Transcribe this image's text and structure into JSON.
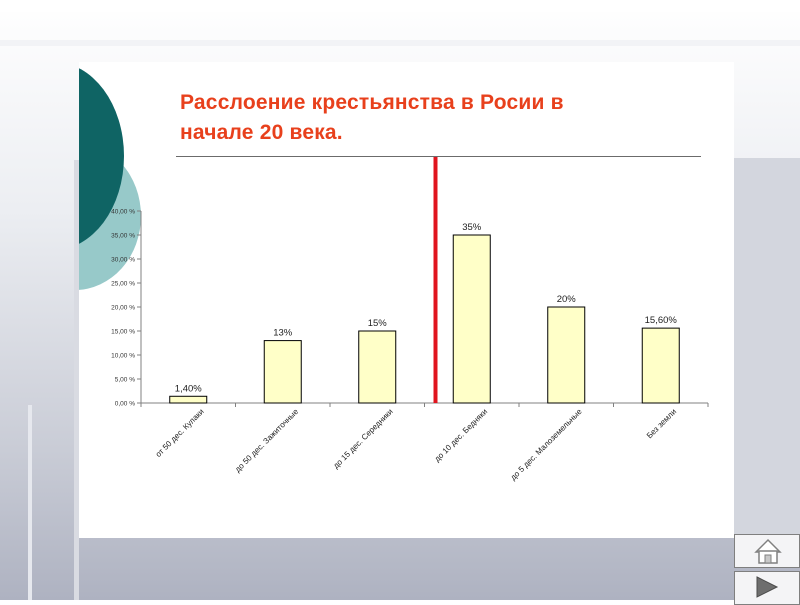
{
  "slide": {
    "title_line1": "Расслоение крестьянства в Росии в",
    "title_line2": "начале 20 века."
  },
  "colors": {
    "title": "#e8401c",
    "bar_fill": "#ffffc8",
    "bar_stroke": "#000000",
    "divider": "#e0141e",
    "circle_dark": "#0f6464",
    "circle_light": "#97c9c9"
  },
  "chart_data": {
    "type": "bar",
    "title": "",
    "xlabel": "",
    "ylabel": "",
    "ylim": [
      0,
      40
    ],
    "y_ticks": [
      0,
      5,
      10,
      15,
      20,
      25,
      30,
      35,
      40
    ],
    "y_tick_labels": [
      "0,00 %",
      "5,00 %",
      "10,00 %",
      "15,00 %",
      "20,00 %",
      "25,00 %",
      "30,00 %",
      "35,00 %",
      "40,00 %"
    ],
    "grid": false,
    "categories": [
      "от 50 дес. Кулаки",
      "до 50 дес. Зажиточные",
      "до 15 дес. Середники",
      "до 10 дес. Бедняки",
      "до 5 дес. Малоземельные",
      "Без земли"
    ],
    "values": [
      1.4,
      13,
      15,
      35,
      20,
      15.6
    ],
    "data_labels": [
      "1,40%",
      "13%",
      "15%",
      "35%",
      "20%",
      "15,60%"
    ],
    "annotations": [
      "vertical red divider line between 'до 15 дес. Середники' and 'до 10 дес. Бедняки'"
    ]
  },
  "nav": {
    "home_icon": "home-icon",
    "next_icon": "play-right-icon"
  }
}
